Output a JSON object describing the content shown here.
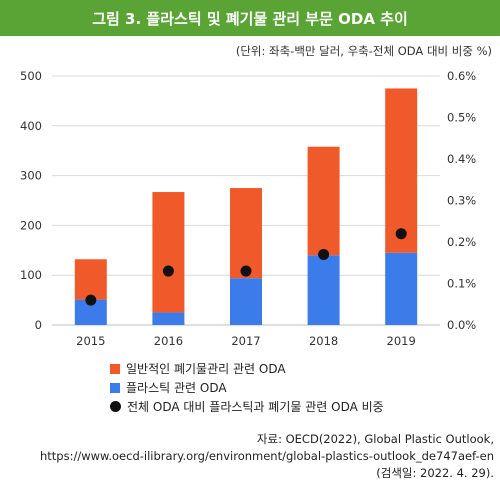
{
  "title": "그림 3. 플라스틱 및 폐기물 관리 부문 ODA 추이",
  "unit_note": "(단위: 좌축-백만 달러, 우축-전체 ODA 대비 비중 %)",
  "colors": {
    "header": "#5aa335",
    "waste": "#f05a2a",
    "plastic": "#3b7bea",
    "share": "#111111",
    "grid": "#d9d9d9"
  },
  "chart_data": {
    "type": "bar",
    "stacked": true,
    "categories": [
      "2015",
      "2016",
      "2017",
      "2018",
      "2019"
    ],
    "series": [
      {
        "name": "플라스틱 관련 ODA",
        "axis": "left",
        "values": [
          51,
          25,
          94,
          140,
          145
        ]
      },
      {
        "name": "일반적인 폐기물관리 관련 ODA",
        "axis": "left",
        "values": [
          81,
          242,
          181,
          218,
          330
        ]
      },
      {
        "name": "전체 ODA 대비 플라스틱과 폐기물 관련 ODA 비중",
        "axis": "right",
        "marker": "dot",
        "values": [
          0.06,
          0.13,
          0.13,
          0.17,
          0.22
        ]
      }
    ],
    "ylim": [
      0,
      500
    ],
    "yticks": [
      "0",
      "100",
      "200",
      "300",
      "400",
      "500"
    ],
    "y2lim": [
      0,
      0.6
    ],
    "y2ticks": [
      "0.0%",
      "0.1%",
      "0.2%",
      "0.3%",
      "0.4%",
      "0.5%",
      "0.6%"
    ],
    "grid": true,
    "legend": "bottom"
  },
  "legend": [
    {
      "label": "일반적인 폐기물관리 관련 ODA",
      "kind": "waste"
    },
    {
      "label": "플라스틱 관련 ODA",
      "kind": "plastic"
    },
    {
      "label": "전체 ODA 대비 플라스틱과 폐기물 관련 ODA 비중",
      "kind": "share"
    }
  ],
  "source": {
    "line1": "자료: OECD(2022), Global Plastic Outlook,",
    "line2": "https://www.oecd-ilibrary.org/environment/global-plastics-outlook_de747aef-en",
    "line3": "(검색일: 2022. 4. 29)."
  }
}
